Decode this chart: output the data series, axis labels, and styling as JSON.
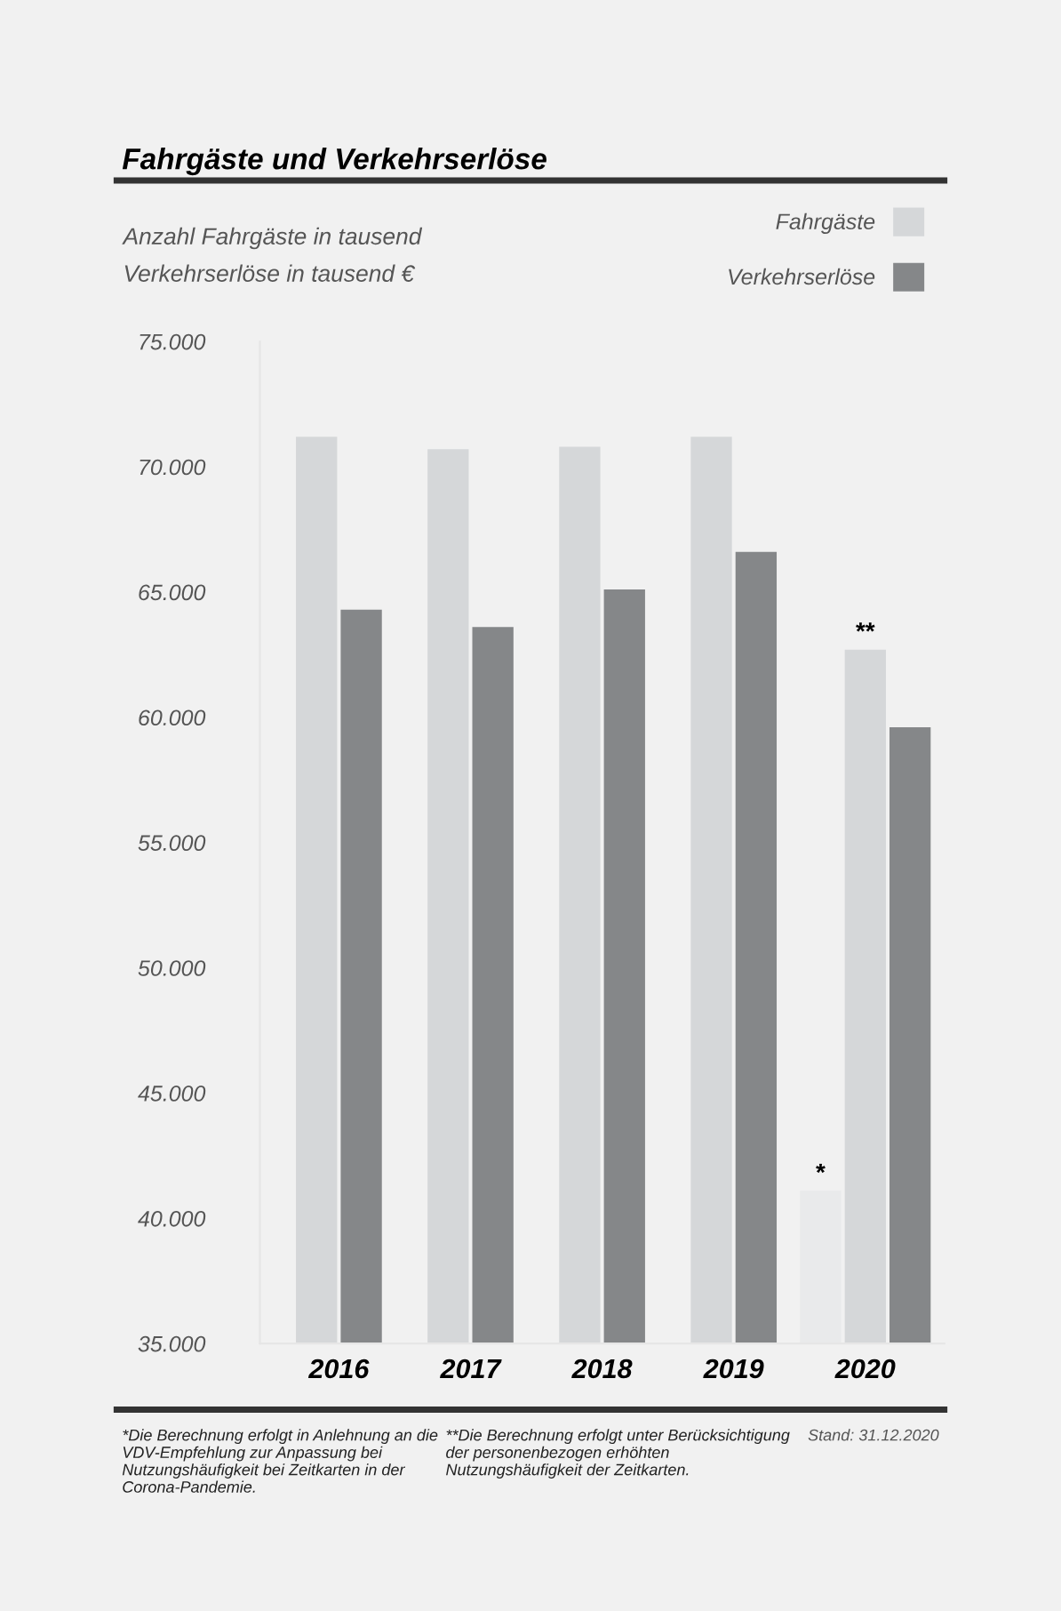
{
  "chart_data": {
    "type": "bar",
    "title": "Fahrgäste und Verkehrserlöse",
    "ylabel": "Anzahl Fahrgäste in tausend\nVerkehrserlöse in tausend €",
    "categories": [
      "2016",
      "2017",
      "2018",
      "2019",
      "2020"
    ],
    "series": [
      {
        "color": "#e9eaeb",
        "values": [
          null,
          null,
          null,
          null,
          41100
        ],
        "value_labels": [
          null,
          null,
          null,
          null,
          "*"
        ]
      },
      {
        "name": "Fahrgäste",
        "color": "#d5d7d9",
        "values": [
          71200,
          70700,
          70800,
          71200,
          62700
        ],
        "value_labels": [
          null,
          null,
          null,
          null,
          "**"
        ]
      },
      {
        "name": "Verkehrserlöse",
        "color": "#858789",
        "values": [
          64300,
          63600,
          65100,
          66600,
          59600
        ]
      }
    ],
    "ylim": [
      35000,
      75000
    ],
    "yticks": [
      {
        "value": 35000,
        "label": "35.000"
      },
      {
        "value": 40000,
        "label": "40.000"
      },
      {
        "value": 45000,
        "label": "45.000"
      },
      {
        "value": 50000,
        "label": "50.000"
      },
      {
        "value": 55000,
        "label": "55.000"
      },
      {
        "value": 60000,
        "label": "60.000"
      },
      {
        "value": 65000,
        "label": "65.000"
      },
      {
        "value": 70000,
        "label": "70.000"
      },
      {
        "value": 75000,
        "label": "75.000"
      }
    ],
    "grid": false,
    "legend": "top right",
    "annotations": [
      "*Die Berechnung erfolgt in Anlehnung an die VDV-Empfehlung zur Anpassung bei Nutzungshäufigkeit bei Zeitkarten in der Corona-Pandemie.",
      "**Die Berechnung erfolgt unter Berücksichtigung der personenbezogen erhöhten Nutzungshäufigkeit der Zeitkarten.",
      "Stand: 31.12.2020"
    ]
  }
}
